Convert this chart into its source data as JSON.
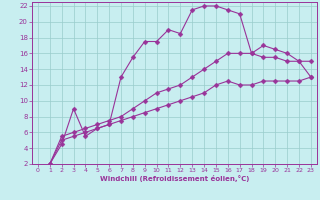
{
  "xlabel": "Windchill (Refroidissement éolien,°C)",
  "bg_color": "#c8eef0",
  "grid_color": "#99cccc",
  "line_color": "#993399",
  "xlim": [
    -0.5,
    23.5
  ],
  "ylim": [
    2,
    22.5
  ],
  "xticks": [
    0,
    1,
    2,
    3,
    4,
    5,
    6,
    7,
    8,
    9,
    10,
    11,
    12,
    13,
    14,
    15,
    16,
    17,
    18,
    19,
    20,
    21,
    22,
    23
  ],
  "yticks": [
    2,
    4,
    6,
    8,
    10,
    12,
    14,
    16,
    18,
    20,
    22
  ],
  "line1_x": [
    1,
    2,
    3,
    4,
    5,
    6,
    7,
    8,
    9,
    10,
    11,
    12,
    13,
    14,
    15,
    16,
    17,
    18,
    19,
    20,
    21,
    22,
    23
  ],
  "line1_y": [
    2.0,
    4.5,
    9.0,
    5.5,
    6.5,
    7.0,
    13.0,
    15.5,
    17.5,
    17.5,
    19.0,
    18.5,
    21.5,
    22.0,
    22.0,
    21.5,
    21.0,
    16.0,
    17.0,
    16.5,
    16.0,
    15.0,
    13.0
  ],
  "line2_x": [
    1,
    2,
    3,
    4,
    5,
    6,
    7,
    8,
    9,
    10,
    11,
    12,
    13,
    14,
    15,
    16,
    17,
    18,
    19,
    20,
    21,
    22,
    23
  ],
  "line2_y": [
    2.0,
    5.5,
    6.0,
    6.5,
    7.0,
    7.5,
    8.0,
    9.0,
    10.0,
    11.0,
    11.5,
    12.0,
    13.0,
    14.0,
    15.0,
    16.0,
    16.0,
    16.0,
    15.5,
    15.5,
    15.0,
    15.0,
    15.0
  ],
  "line3_x": [
    1,
    2,
    3,
    4,
    5,
    6,
    7,
    8,
    9,
    10,
    11,
    12,
    13,
    14,
    15,
    16,
    17,
    18,
    19,
    20,
    21,
    22,
    23
  ],
  "line3_y": [
    2.0,
    5.0,
    5.5,
    6.0,
    6.5,
    7.0,
    7.5,
    8.0,
    8.5,
    9.0,
    9.5,
    10.0,
    10.5,
    11.0,
    12.0,
    12.5,
    12.0,
    12.0,
    12.5,
    12.5,
    12.5,
    12.5,
    13.0
  ]
}
